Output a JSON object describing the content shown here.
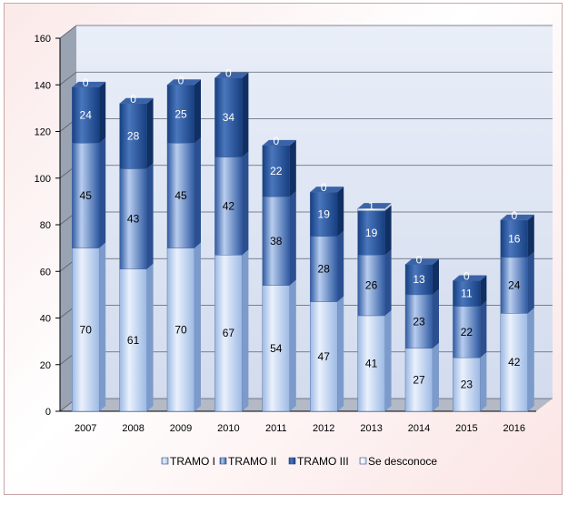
{
  "chart_data": {
    "type": "bar",
    "stacked": true,
    "title": "",
    "xlabel": "",
    "ylabel": "",
    "ylim": [
      0,
      160
    ],
    "yticks": [
      0,
      20,
      40,
      60,
      80,
      100,
      120,
      140,
      160
    ],
    "grid": true,
    "legend_position": "bottom",
    "categories": [
      "2007",
      "2008",
      "2009",
      "2010",
      "2011",
      "2012",
      "2013",
      "2014",
      "2015",
      "2016"
    ],
    "series": [
      {
        "name": "TRAMO I",
        "values": [
          70,
          61,
          70,
          67,
          54,
          47,
          41,
          27,
          23,
          42
        ],
        "color": "#dce8f8"
      },
      {
        "name": "TRAMO II",
        "values": [
          45,
          43,
          45,
          42,
          38,
          28,
          26,
          23,
          22,
          24
        ],
        "color": "#8fb0e0"
      },
      {
        "name": "TRAMO III",
        "values": [
          24,
          28,
          25,
          34,
          22,
          19,
          19,
          13,
          11,
          16
        ],
        "color": "#2f5a9e"
      },
      {
        "name": "Se desconoce",
        "values": [
          0,
          0,
          0,
          0,
          0,
          0,
          1,
          0,
          0,
          0
        ],
        "color": "#ffffff"
      }
    ]
  },
  "colors": {
    "plot_back": "#dfe6f3",
    "plot_wall": "#9aa3b2",
    "grid": "#5a6170",
    "dark_label": "#ffffff",
    "light_label": "#000000"
  }
}
